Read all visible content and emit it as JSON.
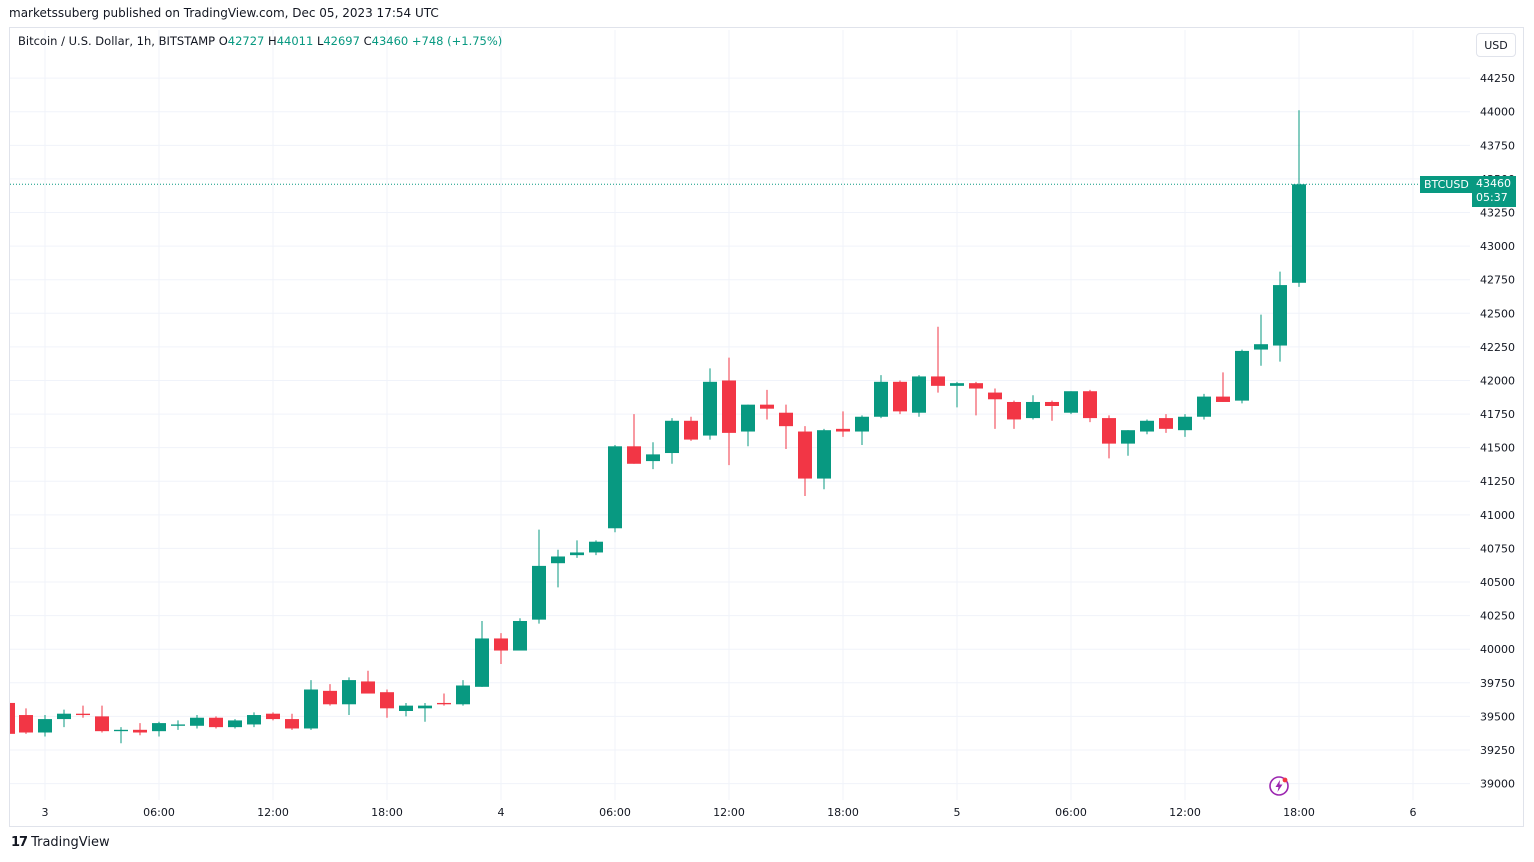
{
  "caption": "marketssuberg published on TradingView.com, Dec 05, 2023 17:54 UTC",
  "legend": {
    "symbol": "Bitcoin / U.S. Dollar, 1h, BITSTAMP",
    "o_key": "O",
    "o_val": "42727",
    "h_key": "H",
    "h_val": "44011",
    "l_key": "L",
    "l_val": "42697",
    "c_key": "C",
    "c_val": "43460",
    "change": "+748 (+1.75%)"
  },
  "currency_button": "USD",
  "price_tag": {
    "symbol": "BTCUSD",
    "value": "43460",
    "countdown": "05:37"
  },
  "footer": {
    "logo_mark": "17",
    "brand": "TradingView"
  },
  "colors": {
    "up": "#089981",
    "down": "#f23645",
    "grid": "#f0f3fa",
    "text": "#131722",
    "accent": "#089981",
    "bolt": "#9c27b0"
  },
  "icons": {
    "bolt": "lightning-bolt-icon",
    "logo": "tradingview-logo-icon"
  },
  "chart_data": {
    "type": "candlestick",
    "ylim": [
      38900,
      44400
    ],
    "y_ticks": [
      39000,
      39250,
      39500,
      39750,
      40000,
      40250,
      40500,
      40750,
      41000,
      41250,
      41500,
      41750,
      42000,
      42250,
      42500,
      42750,
      43000,
      43250,
      43500,
      43750,
      44000,
      44250
    ],
    "x_ticks": [
      {
        "label": "3",
        "index": 1
      },
      {
        "label": "06:00",
        "index": 7
      },
      {
        "label": "12:00",
        "index": 13
      },
      {
        "label": "18:00",
        "index": 19
      },
      {
        "label": "4",
        "index": 25
      },
      {
        "label": "06:00",
        "index": 31
      },
      {
        "label": "12:00",
        "index": 37
      },
      {
        "label": "18:00",
        "index": 43
      },
      {
        "label": "5",
        "index": 49
      },
      {
        "label": "06:00",
        "index": 55
      },
      {
        "label": "12:00",
        "index": 61
      },
      {
        "label": "18:00",
        "index": 67
      },
      {
        "label": "6",
        "index": 73
      }
    ],
    "last_price": 43460,
    "candles": [
      {
        "o": 39510,
        "h": 39560,
        "l": 39370,
        "c": 39380
      },
      {
        "o": 39380,
        "h": 39510,
        "l": 39350,
        "c": 39480
      },
      {
        "o": 39480,
        "h": 39550,
        "l": 39420,
        "c": 39520
      },
      {
        "o": 39520,
        "h": 39580,
        "l": 39490,
        "c": 39510
      },
      {
        "o": 39500,
        "h": 39580,
        "l": 39380,
        "c": 39390
      },
      {
        "o": 39390,
        "h": 39420,
        "l": 39300,
        "c": 39400
      },
      {
        "o": 39400,
        "h": 39450,
        "l": 39360,
        "c": 39380
      },
      {
        "o": 39390,
        "h": 39460,
        "l": 39350,
        "c": 39450
      },
      {
        "o": 39430,
        "h": 39470,
        "l": 39400,
        "c": 39440
      },
      {
        "o": 39430,
        "h": 39510,
        "l": 39410,
        "c": 39490
      },
      {
        "o": 39490,
        "h": 39500,
        "l": 39410,
        "c": 39420
      },
      {
        "o": 39420,
        "h": 39480,
        "l": 39410,
        "c": 39470
      },
      {
        "o": 39440,
        "h": 39530,
        "l": 39420,
        "c": 39510
      },
      {
        "o": 39520,
        "h": 39530,
        "l": 39470,
        "c": 39480
      },
      {
        "o": 39480,
        "h": 39520,
        "l": 39400,
        "c": 39410
      },
      {
        "o": 39410,
        "h": 39770,
        "l": 39400,
        "c": 39700
      },
      {
        "o": 39690,
        "h": 39740,
        "l": 39580,
        "c": 39590
      },
      {
        "o": 39590,
        "h": 39790,
        "l": 39510,
        "c": 39770
      },
      {
        "o": 39760,
        "h": 39840,
        "l": 39680,
        "c": 39670
      },
      {
        "o": 39680,
        "h": 39700,
        "l": 39490,
        "c": 39560
      },
      {
        "o": 39540,
        "h": 39600,
        "l": 39500,
        "c": 39580
      },
      {
        "o": 39560,
        "h": 39600,
        "l": 39460,
        "c": 39580
      },
      {
        "o": 39600,
        "h": 39670,
        "l": 39580,
        "c": 39590
      },
      {
        "o": 39590,
        "h": 39770,
        "l": 39580,
        "c": 39730
      },
      {
        "o": 39720,
        "h": 40210,
        "l": 39720,
        "c": 40080
      },
      {
        "o": 40080,
        "h": 40120,
        "l": 39890,
        "c": 39990
      },
      {
        "o": 39990,
        "h": 40230,
        "l": 39990,
        "c": 40210
      },
      {
        "o": 40220,
        "h": 40890,
        "l": 40190,
        "c": 40620
      },
      {
        "o": 40640,
        "h": 40740,
        "l": 40460,
        "c": 40690
      },
      {
        "o": 40700,
        "h": 40810,
        "l": 40680,
        "c": 40720
      },
      {
        "o": 40720,
        "h": 40810,
        "l": 40700,
        "c": 40800
      },
      {
        "o": 40900,
        "h": 41520,
        "l": 40870,
        "c": 41510
      },
      {
        "o": 41510,
        "h": 41750,
        "l": 41380,
        "c": 41380
      },
      {
        "o": 41400,
        "h": 41540,
        "l": 41340,
        "c": 41450
      },
      {
        "o": 41460,
        "h": 41720,
        "l": 41380,
        "c": 41700
      },
      {
        "o": 41700,
        "h": 41730,
        "l": 41550,
        "c": 41560
      },
      {
        "o": 41590,
        "h": 42090,
        "l": 41560,
        "c": 41990
      },
      {
        "o": 42000,
        "h": 42170,
        "l": 41370,
        "c": 41610
      },
      {
        "o": 41620,
        "h": 41820,
        "l": 41510,
        "c": 41820
      },
      {
        "o": 41820,
        "h": 41930,
        "l": 41710,
        "c": 41790
      },
      {
        "o": 41760,
        "h": 41820,
        "l": 41490,
        "c": 41660
      },
      {
        "o": 41620,
        "h": 41660,
        "l": 41140,
        "c": 41270
      },
      {
        "o": 41270,
        "h": 41640,
        "l": 41190,
        "c": 41630
      },
      {
        "o": 41640,
        "h": 41770,
        "l": 41580,
        "c": 41620
      },
      {
        "o": 41620,
        "h": 41740,
        "l": 41520,
        "c": 41730
      },
      {
        "o": 41730,
        "h": 42040,
        "l": 41720,
        "c": 41990
      },
      {
        "o": 41990,
        "h": 42000,
        "l": 41750,
        "c": 41770
      },
      {
        "o": 41760,
        "h": 42040,
        "l": 41730,
        "c": 42030
      },
      {
        "o": 42030,
        "h": 42400,
        "l": 41910,
        "c": 41960
      },
      {
        "o": 41960,
        "h": 41990,
        "l": 41800,
        "c": 41980
      },
      {
        "o": 41980,
        "h": 41990,
        "l": 41740,
        "c": 41940
      },
      {
        "o": 41910,
        "h": 41940,
        "l": 41640,
        "c": 41860
      },
      {
        "o": 41840,
        "h": 41850,
        "l": 41640,
        "c": 41710
      },
      {
        "o": 41720,
        "h": 41890,
        "l": 41710,
        "c": 41840
      },
      {
        "o": 41840,
        "h": 41850,
        "l": 41700,
        "c": 41810
      },
      {
        "o": 41760,
        "h": 41920,
        "l": 41750,
        "c": 41920
      },
      {
        "o": 41920,
        "h": 41930,
        "l": 41690,
        "c": 41720
      },
      {
        "o": 41720,
        "h": 41740,
        "l": 41420,
        "c": 41530
      },
      {
        "o": 41530,
        "h": 41630,
        "l": 41440,
        "c": 41630
      },
      {
        "o": 41620,
        "h": 41710,
        "l": 41600,
        "c": 41700
      },
      {
        "o": 41720,
        "h": 41750,
        "l": 41610,
        "c": 41640
      },
      {
        "o": 41630,
        "h": 41750,
        "l": 41580,
        "c": 41730
      },
      {
        "o": 41730,
        "h": 41900,
        "l": 41710,
        "c": 41880
      },
      {
        "o": 41880,
        "h": 42060,
        "l": 41840,
        "c": 41840
      },
      {
        "o": 41850,
        "h": 42230,
        "l": 41830,
        "c": 42220
      },
      {
        "o": 42230,
        "h": 42490,
        "l": 42110,
        "c": 42270
      },
      {
        "o": 42260,
        "h": 42810,
        "l": 42140,
        "c": 42710
      },
      {
        "o": 42727,
        "h": 44011,
        "l": 42697,
        "c": 43460
      }
    ]
  }
}
